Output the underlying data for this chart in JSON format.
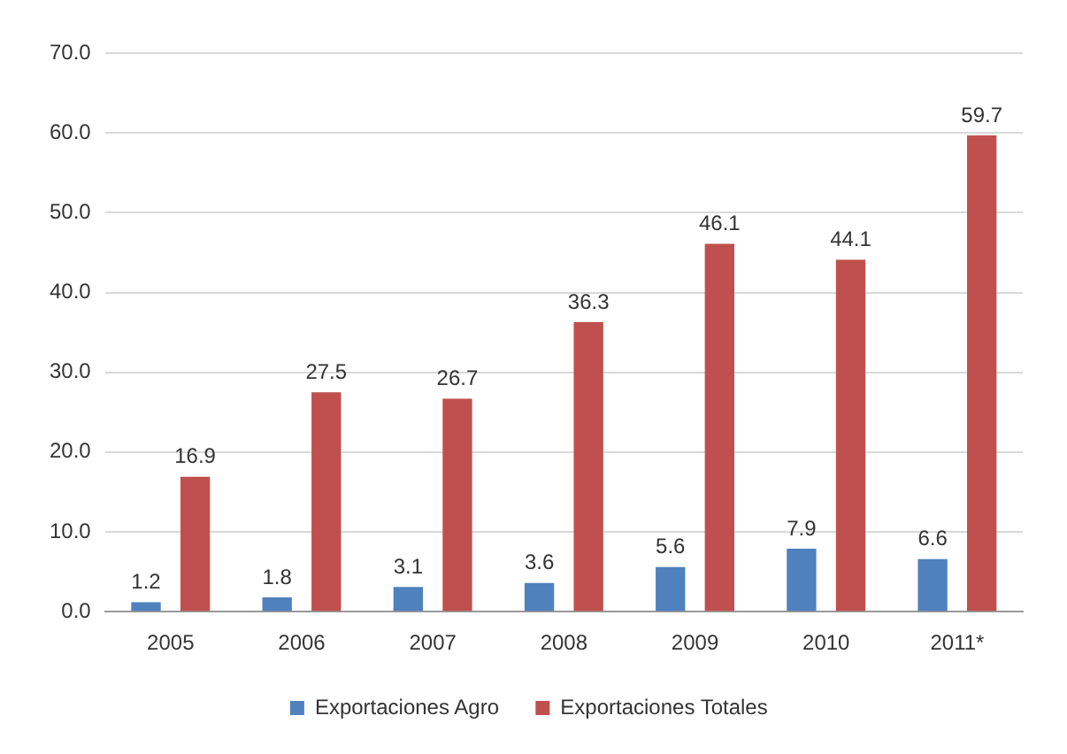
{
  "chart_data": {
    "type": "bar",
    "categories": [
      "2005",
      "2006",
      "2007",
      "2008",
      "2009",
      "2010",
      "2011*"
    ],
    "series": [
      {
        "name": "Exportaciones Agro",
        "color": "#4f81bd",
        "values": [
          1.2,
          1.8,
          3.1,
          3.6,
          5.6,
          7.9,
          6.6
        ]
      },
      {
        "name": "Exportaciones Totales",
        "color": "#c0504d",
        "values": [
          16.9,
          27.5,
          26.7,
          36.3,
          46.1,
          44.1,
          59.7
        ]
      }
    ],
    "ylim": [
      0,
      70
    ],
    "yticks": [
      {
        "value": 0,
        "label": "0.0"
      },
      {
        "value": 10,
        "label": "10.0"
      },
      {
        "value": 20,
        "label": "20.0"
      },
      {
        "value": 30,
        "label": "30.0"
      },
      {
        "value": 40,
        "label": "40.0"
      },
      {
        "value": 50,
        "label": "50.0"
      },
      {
        "value": 60,
        "label": "60.0"
      },
      {
        "value": 70,
        "label": "70.0"
      }
    ],
    "grid": "y",
    "legend": "bottom",
    "data_labels": true
  }
}
